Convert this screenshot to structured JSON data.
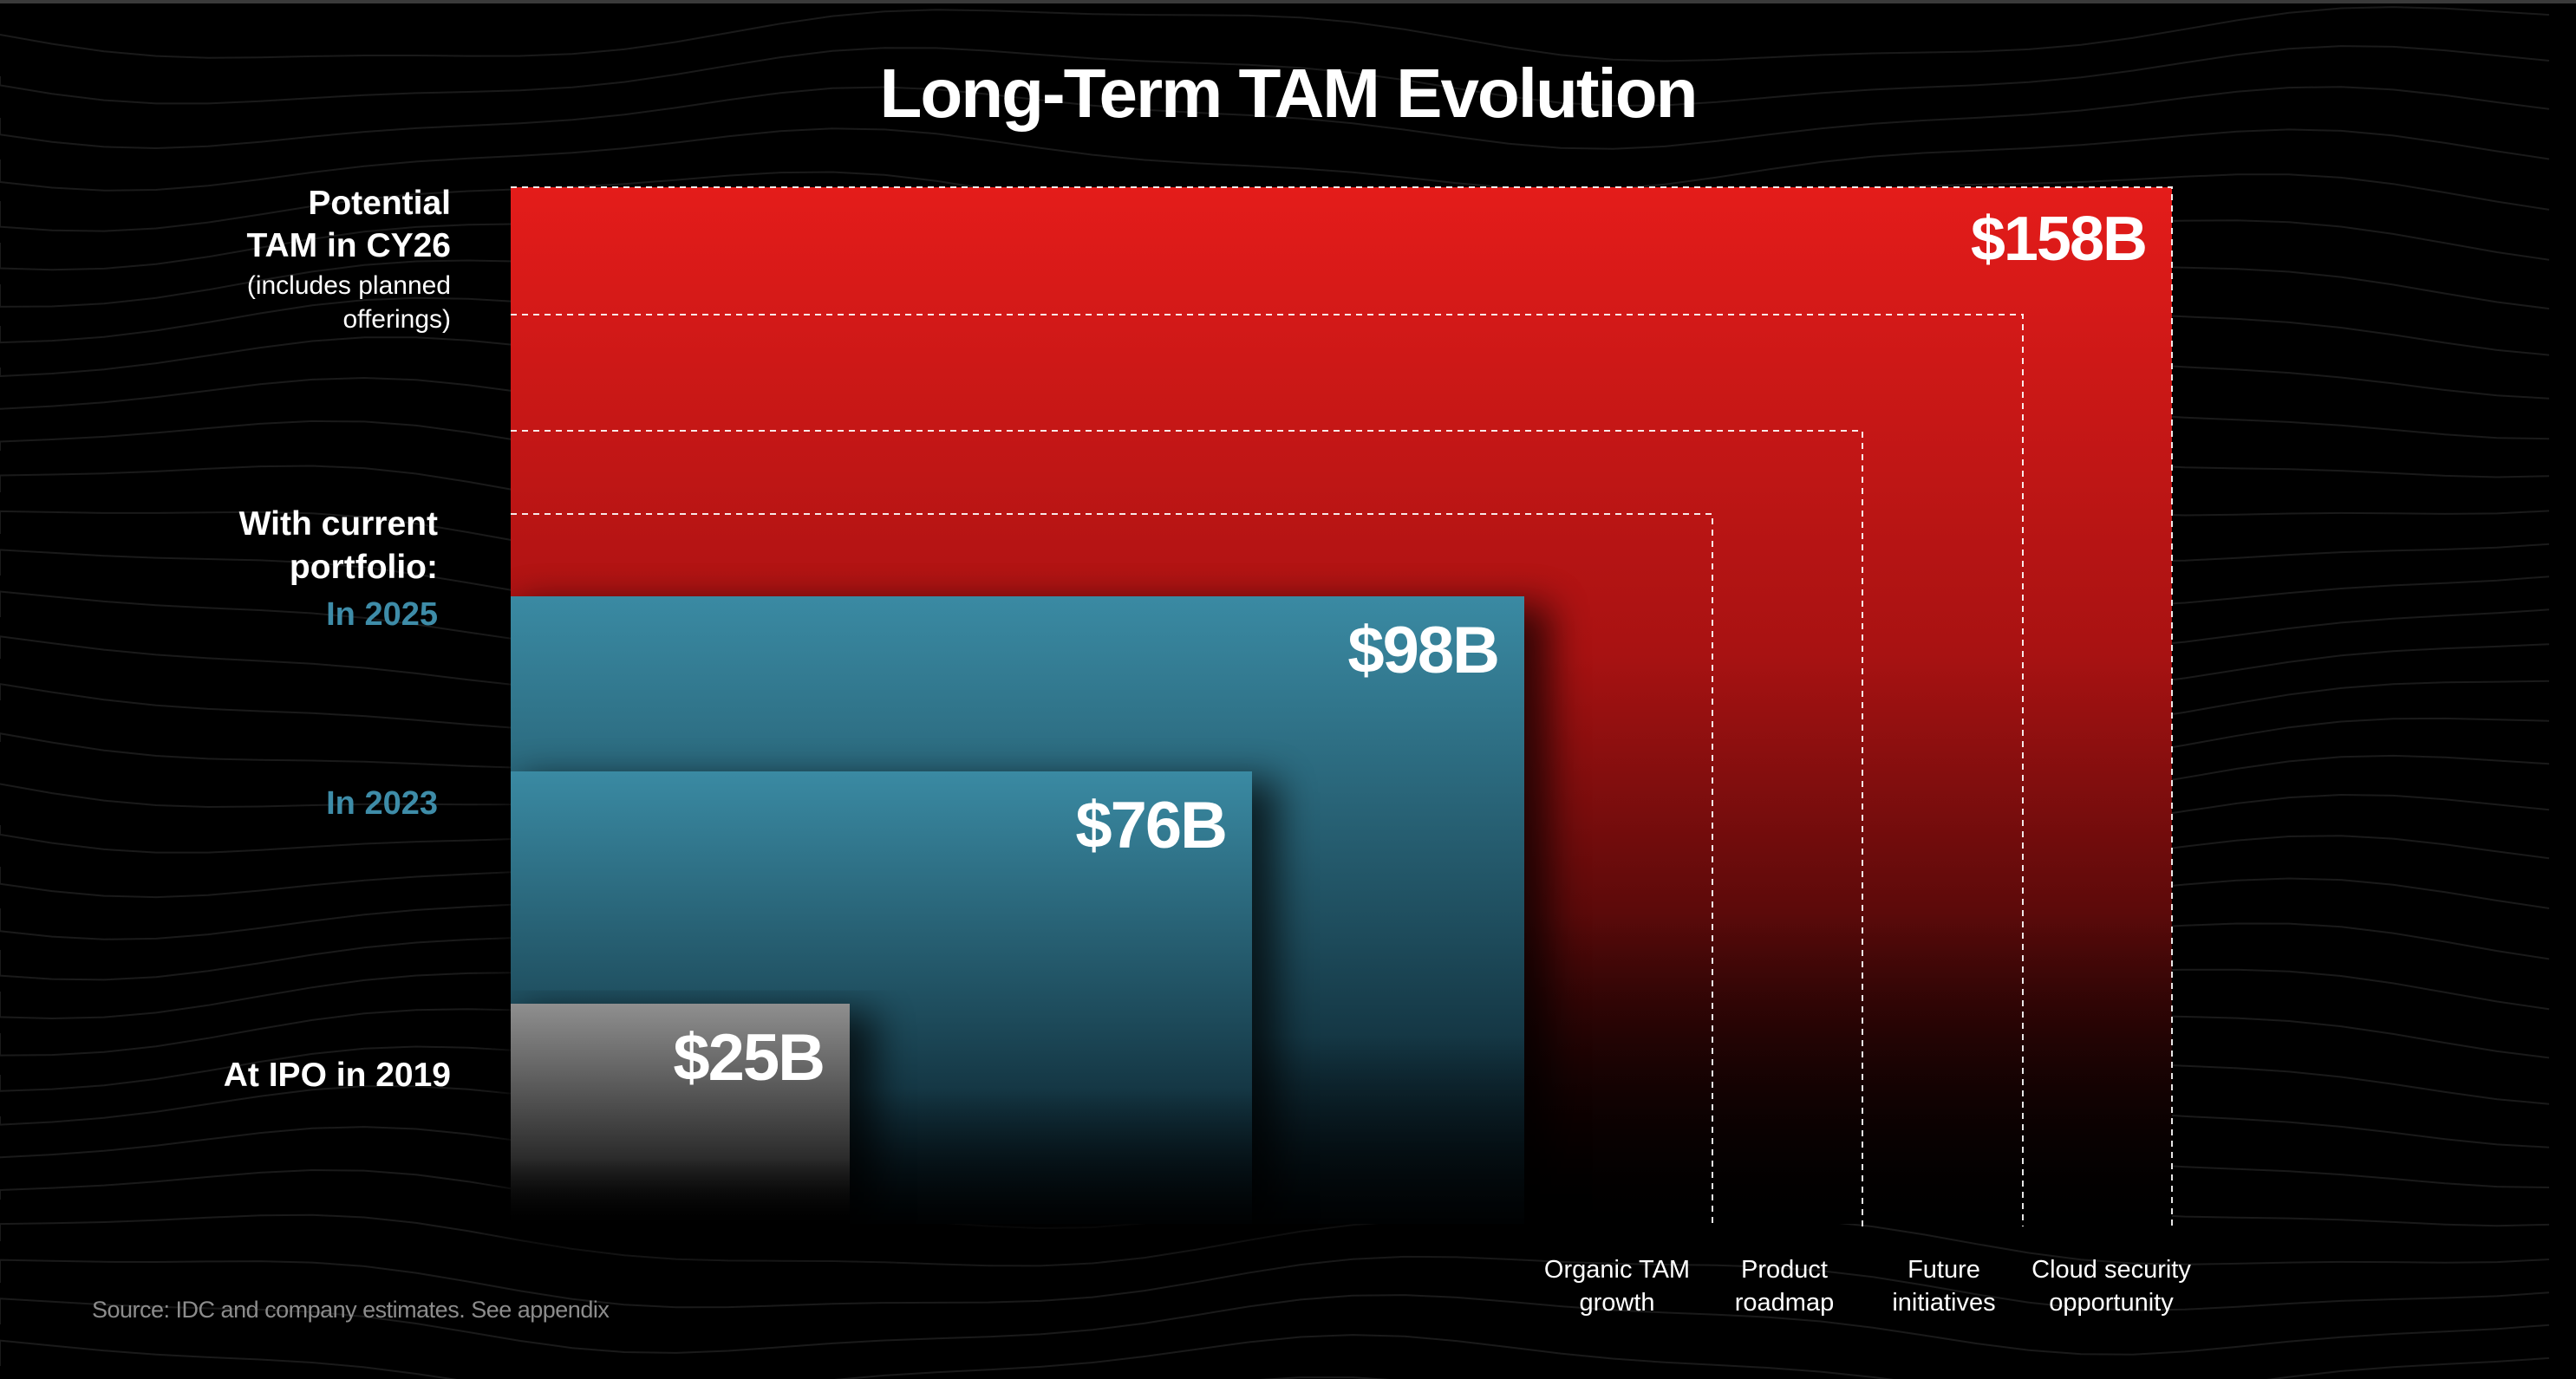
{
  "title": "Long-Term TAM Evolution",
  "labels": {
    "potential_line1": "Potential",
    "potential_line2": "TAM in CY26",
    "potential_note1": "(includes planned",
    "potential_note2": "offerings)",
    "current_line1": "With current",
    "current_line2": "portfolio:",
    "in_2025": "In 2025",
    "in_2023": "In 2023",
    "at_ipo": "At IPO in 2019"
  },
  "drivers": [
    {
      "line1": "Organic TAM",
      "line2": "growth"
    },
    {
      "line1": "Product",
      "line2": "roadmap"
    },
    {
      "line1": "Future",
      "line2": "initiatives"
    },
    {
      "line1": "Cloud security",
      "line2": "opportunity"
    }
  ],
  "source": "Source: IDC and company estimates. See appendix",
  "colors": {
    "red_top": "#e41c1a",
    "red_bottom": "#000000",
    "teal_top": "#3a8aa3",
    "teal_bottom": "#05141a",
    "gray_top": "#8f8f8f",
    "gray_bottom": "#000000",
    "dashed": "#ffffff"
  },
  "chart_data": {
    "type": "area",
    "title": "Long-Term TAM Evolution",
    "unit": "$B",
    "series": [
      {
        "name": "At IPO in 2019",
        "value": 25,
        "value_label": "$25B"
      },
      {
        "name": "In 2023",
        "value": 76,
        "value_label": "$76B"
      },
      {
        "name": "In 2025",
        "value": 98,
        "value_label": "$98B"
      },
      {
        "name": "Potential TAM in CY26",
        "value": 158,
        "value_label": "$158B"
      }
    ],
    "drivers": [
      "Organic TAM growth",
      "Product roadmap",
      "Future initiatives",
      "Cloud security opportunity"
    ]
  }
}
